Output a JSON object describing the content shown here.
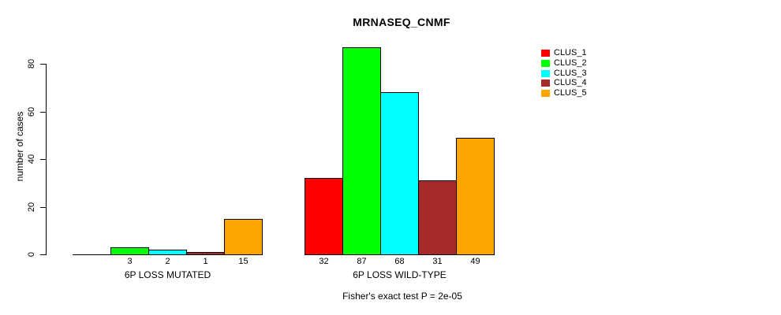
{
  "chart_data": {
    "type": "bar",
    "title": "MRNASEQ_CNMF",
    "ylabel": "number of cases",
    "ylim": [
      0,
      80
    ],
    "yticks": [
      0,
      20,
      40,
      60,
      80
    ],
    "grid": false,
    "legend_position": "top-right",
    "categories": [
      "6P LOSS MUTATED",
      "6P LOSS WILD-TYPE"
    ],
    "series": [
      {
        "name": "CLUS_1",
        "color": "#FF0000",
        "values": [
          0,
          32
        ]
      },
      {
        "name": "CLUS_2",
        "color": "#00FF00",
        "values": [
          3,
          87
        ]
      },
      {
        "name": "CLUS_3",
        "color": "#00FFFF",
        "values": [
          2,
          68
        ]
      },
      {
        "name": "CLUS_4",
        "color": "#A52A2A",
        "values": [
          1,
          31
        ]
      },
      {
        "name": "CLUS_5",
        "color": "#FFA500",
        "values": [
          15,
          49
        ]
      }
    ],
    "bar_value_labels": {
      "show": true,
      "hide_zero": true
    },
    "footnote": "Fisher's exact test P = 2e-05"
  }
}
